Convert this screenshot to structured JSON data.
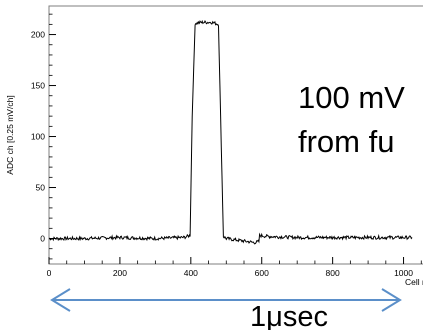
{
  "chart_data": {
    "type": "line",
    "title": "",
    "xlabel": "Cell numb",
    "ylabel": "ADC ch [0.25 mV/ch]",
    "xlim": [
      0,
      1100
    ],
    "ylim": [
      -25,
      228
    ],
    "xticks": [
      0,
      200,
      400,
      600,
      800,
      1000
    ],
    "yticks": [
      0,
      50,
      100,
      150,
      200
    ],
    "grid": false,
    "series": [
      {
        "x": [
          0,
          100,
          200,
          300,
          380,
          398,
          404,
          412,
          430,
          460,
          478,
          484,
          492,
          500,
          540,
          580,
          592,
          594,
          620,
          700,
          800,
          900,
          1000,
          1024
        ],
        "y": [
          0,
          0,
          1,
          0,
          1,
          3,
          120,
          211,
          212,
          212,
          210,
          120,
          2,
          0,
          -2,
          -4,
          -3,
          3,
          2,
          1,
          1,
          1,
          1,
          1
        ]
      }
    ]
  },
  "annotation": {
    "line1": "100 mV",
    "line2": "from fu",
    "span_label": "1μsec"
  },
  "colors": {
    "trace": "#000000",
    "arrow": "#5b8fc9",
    "frame": "#7f7f7f",
    "annotation": "#000000"
  }
}
